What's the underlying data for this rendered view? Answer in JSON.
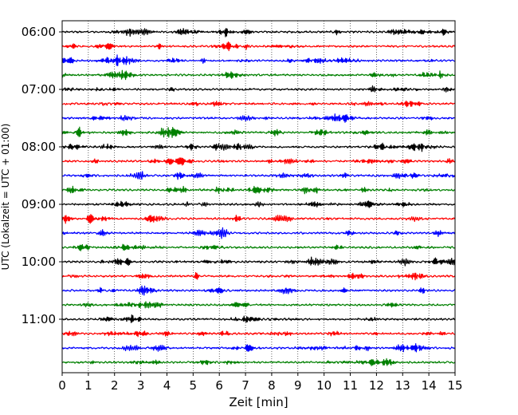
{
  "chart_data": {
    "type": "line",
    "title": "",
    "xlabel": "Zeit  [min]",
    "ylabel": "UTC (Lokalzeit = UTC + 01:00)",
    "xlim": [
      0,
      15
    ],
    "x_ticks": [
      "0",
      "1",
      "2",
      "3",
      "4",
      "5",
      "6",
      "7",
      "8",
      "9",
      "10",
      "11",
      "12",
      "13",
      "14",
      "15"
    ],
    "y_tick_labels": [
      "06:00",
      "07:00",
      "08:00",
      "09:00",
      "10:00",
      "11:00"
    ],
    "grid": "vertical dotted lines at each minute",
    "trace_interval_min": 15,
    "colors": [
      "#000000",
      "#ff0000",
      "#0000ff",
      "#008000"
    ],
    "traces": [
      {
        "start": "06:00",
        "color": "#000000"
      },
      {
        "start": "06:15",
        "color": "#ff0000"
      },
      {
        "start": "06:30",
        "color": "#0000ff"
      },
      {
        "start": "06:45",
        "color": "#008000"
      },
      {
        "start": "07:00",
        "color": "#000000"
      },
      {
        "start": "07:15",
        "color": "#ff0000"
      },
      {
        "start": "07:30",
        "color": "#0000ff"
      },
      {
        "start": "07:45",
        "color": "#008000"
      },
      {
        "start": "08:00",
        "color": "#000000"
      },
      {
        "start": "08:15",
        "color": "#ff0000"
      },
      {
        "start": "08:30",
        "color": "#0000ff"
      },
      {
        "start": "08:45",
        "color": "#008000"
      },
      {
        "start": "09:00",
        "color": "#000000"
      },
      {
        "start": "09:15",
        "color": "#ff0000"
      },
      {
        "start": "09:30",
        "color": "#0000ff"
      },
      {
        "start": "09:45",
        "color": "#008000"
      },
      {
        "start": "10:00",
        "color": "#000000"
      },
      {
        "start": "10:15",
        "color": "#ff0000"
      },
      {
        "start": "10:30",
        "color": "#0000ff"
      },
      {
        "start": "10:45",
        "color": "#008000"
      },
      {
        "start": "11:00",
        "color": "#000000"
      },
      {
        "start": "11:15",
        "color": "#ff0000"
      },
      {
        "start": "11:30",
        "color": "#0000ff"
      },
      {
        "start": "11:45",
        "color": "#008000"
      }
    ]
  }
}
